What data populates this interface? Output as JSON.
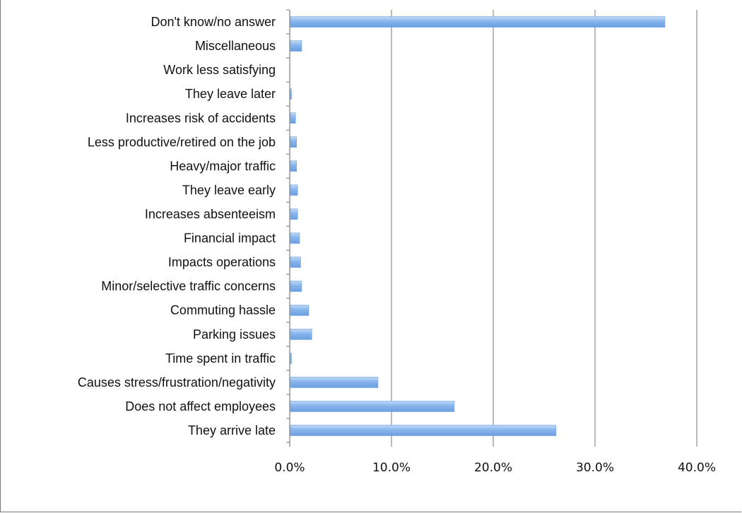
{
  "chart_data": {
    "type": "bar",
    "orientation": "horizontal",
    "title": "",
    "xlabel": "",
    "ylabel": "",
    "categories": [
      "Don't know/no answer",
      "Miscellaneous",
      "Work less satisfying",
      "They leave later",
      "Increases risk of accidents",
      "Less productive/retired on the job",
      "Heavy/major traffic",
      "They leave early",
      "Increases absenteeism",
      "Financial impact",
      "Impacts operations",
      "Minor/selective traffic concerns",
      "Commuting hassle",
      "Parking issues",
      "Time spent in traffic",
      "Causes stress/frustration/negativity",
      "Does not affect employees",
      "They arrive late"
    ],
    "values": [
      36.8,
      1.1,
      0.0,
      0.1,
      0.5,
      0.6,
      0.6,
      0.7,
      0.7,
      0.9,
      1.0,
      1.1,
      1.8,
      2.1,
      0.1,
      8.6,
      16.1,
      26.1
    ],
    "xlim": [
      0,
      40
    ],
    "xticks": [
      "0.0%",
      "10.0%",
      "20.0%",
      "30.0%",
      "40.0%"
    ],
    "grid": true,
    "legend": "none",
    "colors": {
      "bar_light": "#c2dbf7",
      "bar_mid": "#86b4ec",
      "bar_dark": "#6b9fe0",
      "grid": "#8c8c8c"
    }
  }
}
